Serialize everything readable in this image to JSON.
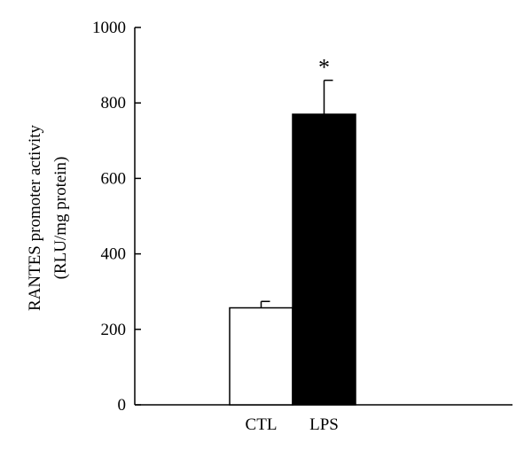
{
  "chart_data": {
    "type": "bar",
    "categories": [
      "CTL",
      "LPS"
    ],
    "values": [
      257,
      770
    ],
    "errors": [
      17,
      90
    ],
    "bar_colors": [
      "#ffffff",
      "#000000"
    ],
    "ylabel_line1": "RANTES promoter activity",
    "ylabel_line2": "(RLU/mg protein)",
    "ylim": [
      0,
      1000
    ],
    "yticks": [
      0,
      200,
      400,
      600,
      800,
      1000
    ],
    "annotations": [
      {
        "category": "LPS",
        "text": "*"
      }
    ],
    "grid": false
  }
}
